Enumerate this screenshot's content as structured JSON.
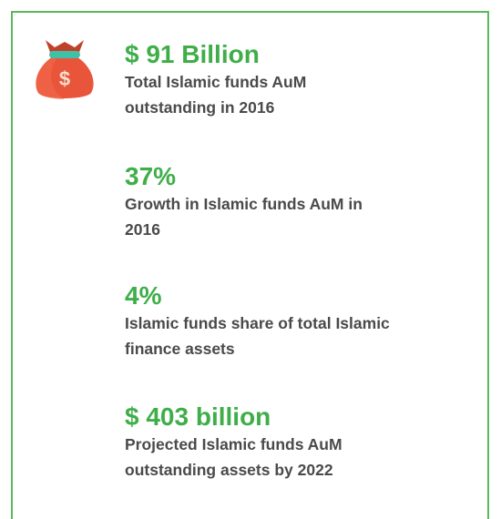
{
  "icon_symbol": "$",
  "stats": [
    {
      "value": "$ 91 Billion",
      "lines": [
        "Total Islamic funds AuM",
        "outstanding in 2016"
      ]
    },
    {
      "value": "37%",
      "lines": [
        "Growth in Islamic funds AuM in",
        "2016"
      ]
    },
    {
      "value": "4%",
      "lines": [
        "Islamic funds share of total Islamic",
        "finance assets"
      ]
    },
    {
      "value": "$ 403 billion",
      "lines": [
        "Projected Islamic funds AuM",
        "outstanding assets by 2022"
      ]
    }
  ]
}
